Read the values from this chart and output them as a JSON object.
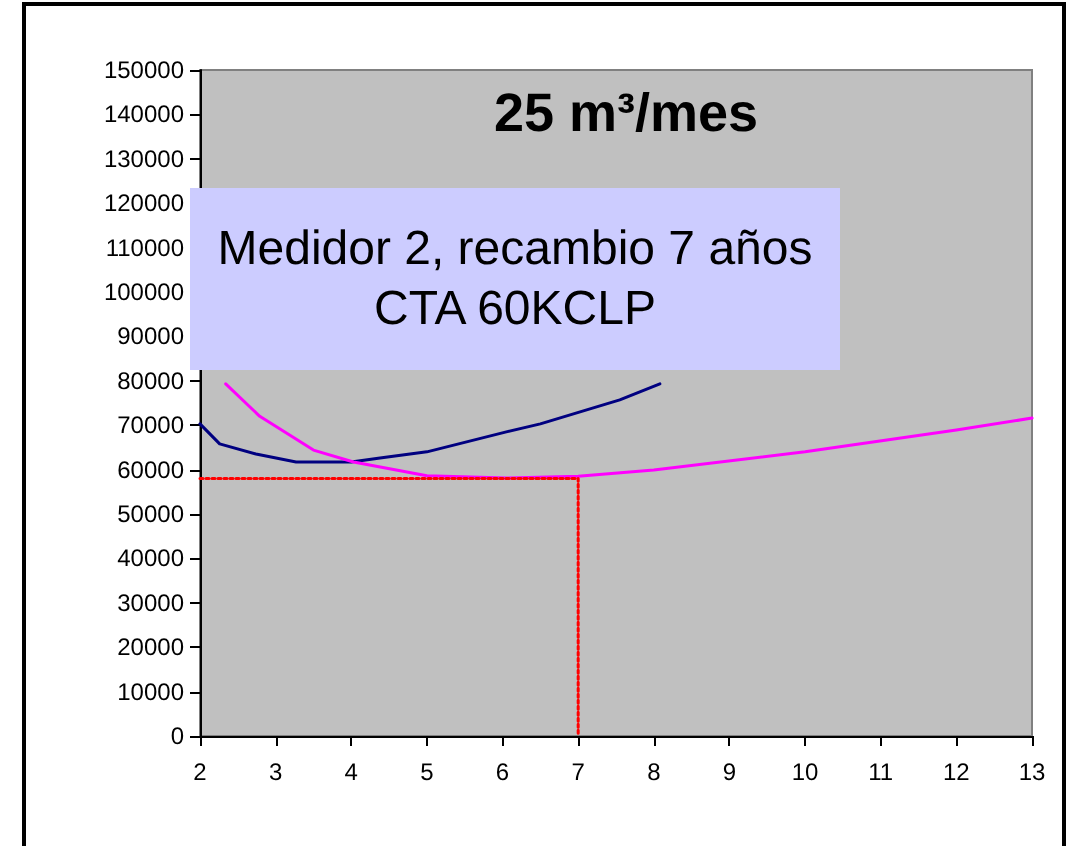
{
  "chart_data": {
    "type": "line",
    "title": "25 m³/mes",
    "annotations": [
      "Medidor 2, recambio 7 años",
      "CTA 60KCLP"
    ],
    "series": [
      {
        "color": "#000080",
        "x": [
          2,
          2.26,
          2.74,
          3.27,
          4,
          4.38,
          5,
          6.05,
          6.5,
          7.55,
          8.08
        ],
        "values": [
          70300,
          65800,
          63500,
          61700,
          61700,
          62600,
          64000,
          68500,
          70300,
          75700,
          79300
        ]
      },
      {
        "color": "#ff00ff",
        "x": [
          2.34,
          2.79,
          3.5,
          4.03,
          5,
          6.05,
          7,
          8,
          10,
          12,
          13
        ],
        "values": [
          79300,
          72000,
          64400,
          61700,
          58600,
          58100,
          58500,
          59900,
          64000,
          68900,
          71600
        ]
      },
      {
        "color": "#ff0000",
        "line_style": "dotted",
        "x": [
          2,
          7,
          7
        ],
        "values": [
          58000,
          58000,
          0
        ]
      }
    ],
    "xlim": [
      2,
      13
    ],
    "xticks": [
      2,
      3,
      4,
      5,
      6,
      7,
      8,
      9,
      10,
      11,
      12,
      13
    ],
    "ylim": [
      0,
      150000
    ],
    "yticks": [
      0,
      10000,
      20000,
      30000,
      40000,
      50000,
      60000,
      70000,
      80000,
      90000,
      100000,
      110000,
      120000,
      130000,
      140000,
      150000
    ],
    "grid": false,
    "marker": "none",
    "line_style": "solid"
  }
}
